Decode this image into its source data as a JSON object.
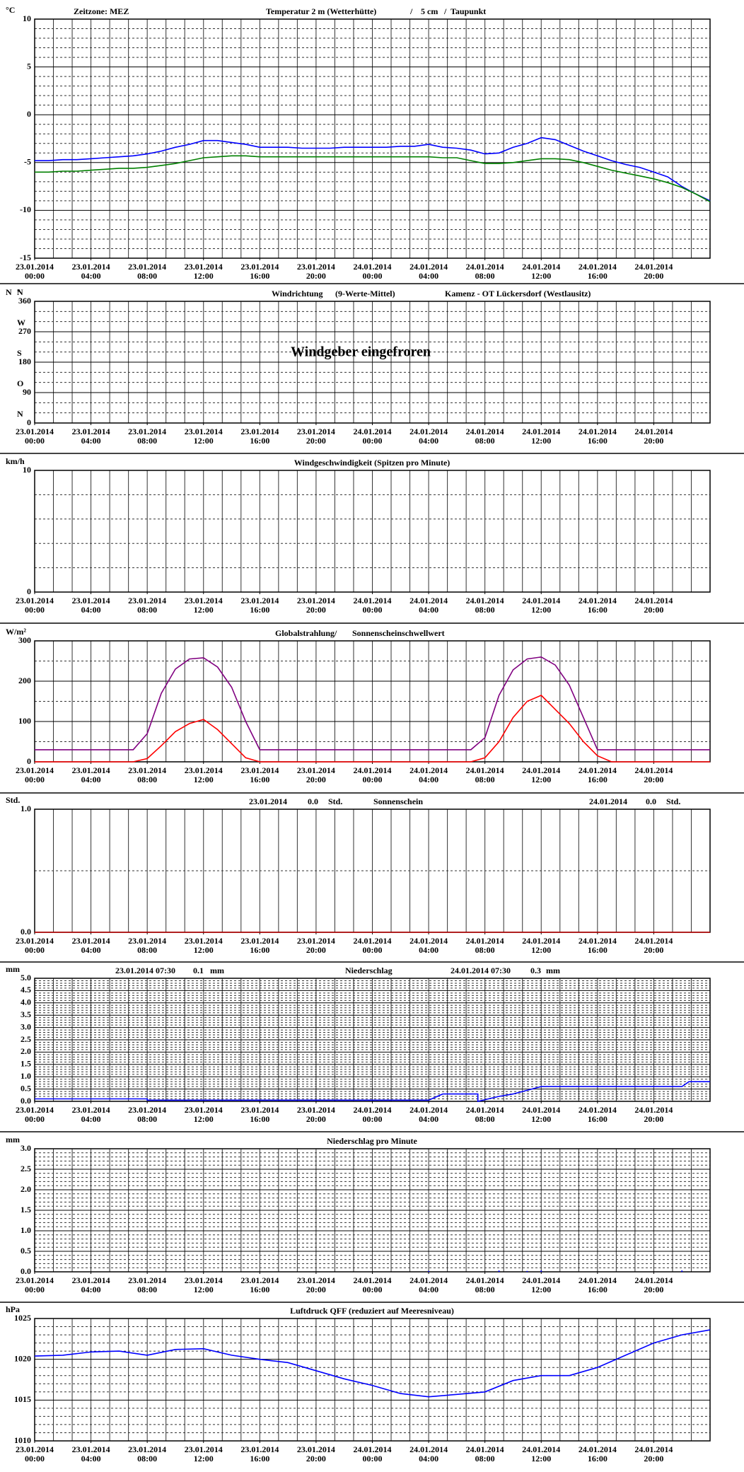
{
  "time_axis": {
    "xlim": [
      0,
      48
    ],
    "xticks": [
      {
        "value": 0,
        "label": "23.01.2014"
      },
      {
        "value": 4,
        "label": "23.01.2014"
      },
      {
        "value": 8,
        "label": "23.01.2014"
      },
      {
        "value": 12,
        "label": "23.01.2014"
      },
      {
        "value": 16,
        "label": "23.01.2014"
      },
      {
        "value": 20,
        "label": "23.01.2014"
      },
      {
        "value": 24,
        "label": "24.01.2014"
      },
      {
        "value": 28,
        "label": "24.01.2014"
      },
      {
        "value": 32,
        "label": "24.01.2014"
      },
      {
        "value": 36,
        "label": "24.01.2014"
      },
      {
        "value": 40,
        "label": "24.01.2014"
      },
      {
        "value": 44,
        "label": "24.01.2014"
      }
    ],
    "xtick_times": [
      "00:00",
      "04:00",
      "08:00",
      "12:00",
      "16:00",
      "20:00",
      "00:00",
      "04:00",
      "08:00",
      "12:00",
      "16:00",
      "20:00"
    ]
  },
  "chart_data": [
    {
      "type": "line",
      "unit": "°C",
      "zone": "Zeitzone: MEZ",
      "title": "Temperatur 2 m (Wetterhütte)",
      "title_color": "#ff0000",
      "separator": "/",
      "x": [
        0,
        1,
        2,
        3,
        4,
        5,
        6,
        7,
        8,
        9,
        10,
        11,
        12,
        13,
        14,
        15,
        16,
        17,
        18,
        19,
        20,
        21,
        22,
        23,
        24,
        25,
        26,
        27,
        28,
        29,
        30,
        31,
        32,
        33,
        34,
        35,
        36,
        37,
        38,
        39,
        40,
        41,
        42,
        43,
        44,
        45,
        46,
        47,
        48
      ],
      "series": [
        {
          "name": "5 cm",
          "color": "#0000ff",
          "values": [
            -4.8,
            -4.8,
            -4.7,
            -4.7,
            -4.6,
            -4.5,
            -4.4,
            -4.3,
            -4.1,
            -3.8,
            -3.4,
            -3.1,
            -2.7,
            -2.7,
            -2.9,
            -3.1,
            -3.4,
            -3.4,
            -3.4,
            -3.5,
            -3.5,
            -3.5,
            -3.4,
            -3.4,
            -3.4,
            -3.4,
            -3.3,
            -3.3,
            -3.1,
            -3.4,
            -3.5,
            -3.7,
            -4.1,
            -4.0,
            -3.4,
            -3.0,
            -2.4,
            -2.6,
            -3.2,
            -3.8,
            -4.3,
            -4.8,
            -5.2,
            -5.5,
            -6.0,
            -6.5,
            -7.5,
            -8.3,
            -9.0
          ]
        },
        {
          "name": "Taupunkt",
          "color": "#008000",
          "values": [
            -6.0,
            -6.0,
            -5.9,
            -5.9,
            -5.8,
            -5.7,
            -5.6,
            -5.6,
            -5.5,
            -5.3,
            -5.1,
            -4.8,
            -4.5,
            -4.4,
            -4.3,
            -4.3,
            -4.4,
            -4.4,
            -4.4,
            -4.4,
            -4.4,
            -4.4,
            -4.4,
            -4.4,
            -4.4,
            -4.4,
            -4.4,
            -4.4,
            -4.4,
            -4.5,
            -4.5,
            -4.8,
            -5.1,
            -5.1,
            -5.0,
            -4.8,
            -4.6,
            -4.6,
            -4.7,
            -5.0,
            -5.4,
            -5.8,
            -6.1,
            -6.4,
            -6.7,
            -7.1,
            -7.6,
            -8.3,
            -9.1
          ]
        }
      ],
      "ylim": [
        -15,
        10
      ],
      "yticks": [
        -15,
        -10,
        -5,
        0,
        5,
        10
      ]
    },
    {
      "type": "line",
      "unit": "°",
      "title": "Windrichtung",
      "title_color": "#0000ff",
      "title_suffix": "(9-Werte-Mittel)",
      "station": "Kamenz - OT Lückersdorf (Westlausitz)",
      "annotation": "Windgeber eingefroren",
      "annotation_color": "#ff0000",
      "series": [],
      "ylim": [
        0,
        360
      ],
      "yticks": [
        0,
        90,
        180,
        270,
        360
      ],
      "compass": [
        "N",
        "O",
        "S",
        "W",
        "N"
      ]
    },
    {
      "type": "line",
      "unit": "km/h",
      "title": "Windgeschwindigkeit (Spitzen pro Minute)",
      "series": [],
      "ylim": [
        0,
        10
      ],
      "yticks": [
        0,
        10
      ]
    },
    {
      "type": "line",
      "unit": "W/m²",
      "title": "Globalstrahlung/",
      "subtitle": "Sonnenscheinschwellwert",
      "subtitle_color": "#800080",
      "x": [
        0,
        1,
        2,
        3,
        4,
        5,
        6,
        7,
        8,
        9,
        10,
        11,
        12,
        13,
        14,
        15,
        16,
        17,
        18,
        19,
        20,
        21,
        22,
        23,
        24,
        25,
        26,
        27,
        28,
        29,
        30,
        31,
        32,
        33,
        34,
        35,
        36,
        37,
        38,
        39,
        40,
        41,
        42,
        43,
        44,
        45,
        46,
        47,
        48
      ],
      "series": [
        {
          "color": "#ff0000",
          "values": [
            0,
            0,
            0,
            0,
            0,
            0,
            0,
            0,
            8,
            40,
            75,
            95,
            105,
            80,
            45,
            10,
            0,
            0,
            0,
            0,
            0,
            0,
            0,
            0,
            0,
            0,
            0,
            0,
            0,
            0,
            0,
            0,
            10,
            50,
            110,
            150,
            165,
            130,
            95,
            50,
            15,
            0,
            0,
            0,
            0,
            0,
            0,
            0,
            0
          ]
        },
        {
          "color": "#800080",
          "values": [
            30,
            30,
            30,
            30,
            30,
            30,
            30,
            30,
            70,
            170,
            230,
            255,
            258,
            235,
            185,
            100,
            30,
            30,
            30,
            30,
            30,
            30,
            30,
            30,
            30,
            30,
            30,
            30,
            30,
            30,
            30,
            30,
            60,
            165,
            228,
            255,
            260,
            240,
            190,
            110,
            30,
            30,
            30,
            30,
            30,
            30,
            30,
            30,
            30
          ]
        }
      ],
      "ylim": [
        0,
        300
      ],
      "yticks": [
        0,
        100,
        200,
        300
      ]
    },
    {
      "type": "line",
      "unit": "Std.",
      "title": "Sonnenschein",
      "daily_dates": [
        "23.01.2014",
        "24.01.2014"
      ],
      "daily_values": [
        0,
        0
      ],
      "value_labels": [
        "0.0",
        "0.0"
      ],
      "daily_unit": "Std.",
      "x": [
        0,
        48
      ],
      "series": [
        {
          "color": "#c00000",
          "values": [
            0,
            0
          ]
        }
      ],
      "ylim": [
        0,
        1
      ],
      "yticks": [
        {
          "value": 0,
          "label": "0.0"
        },
        {
          "value": 1,
          "label": "1.0"
        }
      ]
    },
    {
      "type": "line",
      "unit": "mm",
      "title": "Niederschlag",
      "daily_dates": [
        "23.01.2014 07:30",
        "24.01.2014 07:30"
      ],
      "daily_values": [
        0.1,
        0.3
      ],
      "value_labels": [
        "0.1",
        "0.3"
      ],
      "daily_unit": "mm",
      "x": [
        0,
        8,
        8,
        28,
        29,
        31.5,
        31.5,
        33,
        34,
        36,
        46,
        46.5,
        48
      ],
      "series": [
        {
          "color": "#0000ff",
          "values": [
            0.1,
            0.1,
            0.05,
            0.05,
            0.3,
            0.3,
            0,
            0.2,
            0.3,
            0.6,
            0.6,
            0.8,
            0.8
          ]
        }
      ],
      "ylim": [
        0,
        5
      ],
      "yticks": [
        {
          "value": 0,
          "label": "0.0"
        },
        {
          "value": 0.5,
          "label": "0.5"
        },
        {
          "value": 1,
          "label": "1.0"
        },
        {
          "value": 1.5,
          "label": "1.5"
        },
        {
          "value": 2,
          "label": "2.0"
        },
        {
          "value": 2.5,
          "label": "2.5"
        },
        {
          "value": 3,
          "label": "3.0"
        },
        {
          "value": 3.5,
          "label": "3.5"
        },
        {
          "value": 4,
          "label": "4.0"
        },
        {
          "value": 4.5,
          "label": "4.5"
        },
        {
          "value": 5,
          "label": "5.0"
        }
      ]
    },
    {
      "type": "bar",
      "unit": "mm",
      "title": "Niederschlag pro Minute",
      "x": [
        28,
        33,
        35,
        36,
        46
      ],
      "series": [
        {
          "color": "#0000ff",
          "values": [
            0.02,
            0.03,
            0.02,
            0.03,
            0.03
          ]
        }
      ],
      "ylim": [
        0,
        3
      ],
      "yticks": [
        {
          "value": 0,
          "label": "0.0"
        },
        {
          "value": 0.5,
          "label": "0.5"
        },
        {
          "value": 1,
          "label": "1.0"
        },
        {
          "value": 1.5,
          "label": "1.5"
        },
        {
          "value": 2,
          "label": "2.0"
        },
        {
          "value": 2.5,
          "label": "2.5"
        },
        {
          "value": 3,
          "label": "3.0"
        }
      ]
    },
    {
      "type": "line",
      "unit": "hPa",
      "title": "Luftdruck QFF (reduziert auf Meeresniveau)",
      "x": [
        0,
        2,
        4,
        6,
        8,
        10,
        12,
        14,
        16,
        18,
        20,
        22,
        24,
        26,
        28,
        30,
        32,
        34,
        36,
        38,
        40,
        42,
        44,
        46,
        48
      ],
      "series": [
        {
          "color": "#0000ff",
          "values": [
            1020.4,
            1020.5,
            1020.9,
            1021.0,
            1020.5,
            1021.2,
            1021.3,
            1020.5,
            1020.0,
            1019.6,
            1018.6,
            1017.6,
            1016.8,
            1015.8,
            1015.4,
            1015.7,
            1016.0,
            1017.4,
            1018.0,
            1018.0,
            1019.0,
            1020.5,
            1022.0,
            1023.0,
            1023.6
          ]
        }
      ],
      "ylim": [
        1010,
        1025
      ],
      "yticks": [
        1010,
        1015,
        1020,
        1025
      ]
    }
  ]
}
